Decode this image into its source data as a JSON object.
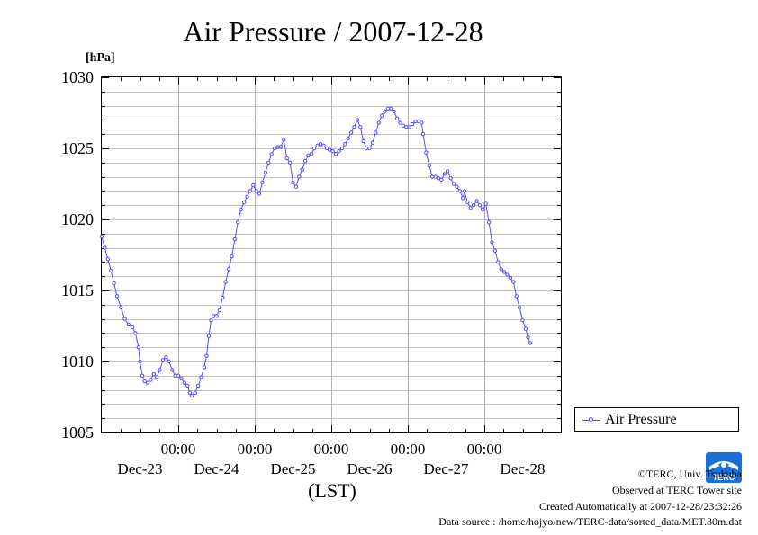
{
  "chart_data": {
    "type": "line",
    "title": "Air Pressure / 2007-12-28",
    "ylabel": "[hPa]",
    "xlabel": "(LST)",
    "ylim": [
      1005,
      1030
    ],
    "yticks": [
      1005,
      1010,
      1015,
      1020,
      1025,
      1030
    ],
    "xlim_days": [
      0,
      6
    ],
    "xtick_time_label": "00:00",
    "xtick_date_labels": [
      "Dec-23",
      "Dec-24",
      "Dec-25",
      "Dec-26",
      "Dec-27",
      "Dec-28"
    ],
    "grid": true,
    "legend_placement": "right",
    "series": [
      {
        "name": "Air Pressure",
        "color": "#5050ff",
        "points": [
          [
            0.0,
            1018.8
          ],
          [
            0.04,
            1018.0
          ],
          [
            0.08,
            1017.2
          ],
          [
            0.12,
            1016.4
          ],
          [
            0.16,
            1015.5
          ],
          [
            0.2,
            1014.6
          ],
          [
            0.25,
            1013.8
          ],
          [
            0.3,
            1013.0
          ],
          [
            0.35,
            1012.6
          ],
          [
            0.4,
            1012.4
          ],
          [
            0.44,
            1012.0
          ],
          [
            0.48,
            1011.0
          ],
          [
            0.5,
            1010.0
          ],
          [
            0.53,
            1009.0
          ],
          [
            0.56,
            1008.6
          ],
          [
            0.6,
            1008.5
          ],
          [
            0.64,
            1008.7
          ],
          [
            0.68,
            1009.1
          ],
          [
            0.72,
            1008.9
          ],
          [
            0.76,
            1009.4
          ],
          [
            0.8,
            1010.1
          ],
          [
            0.84,
            1010.3
          ],
          [
            0.88,
            1010.0
          ],
          [
            0.92,
            1009.4
          ],
          [
            0.96,
            1009.0
          ],
          [
            1.0,
            1009.0
          ],
          [
            1.04,
            1008.8
          ],
          [
            1.08,
            1008.5
          ],
          [
            1.12,
            1008.3
          ],
          [
            1.15,
            1007.8
          ],
          [
            1.18,
            1007.6
          ],
          [
            1.22,
            1007.8
          ],
          [
            1.26,
            1008.3
          ],
          [
            1.3,
            1008.9
          ],
          [
            1.34,
            1009.6
          ],
          [
            1.37,
            1010.4
          ],
          [
            1.4,
            1011.8
          ],
          [
            1.43,
            1012.9
          ],
          [
            1.46,
            1013.2
          ],
          [
            1.5,
            1013.2
          ],
          [
            1.54,
            1013.6
          ],
          [
            1.58,
            1014.5
          ],
          [
            1.62,
            1015.6
          ],
          [
            1.66,
            1016.5
          ],
          [
            1.7,
            1017.4
          ],
          [
            1.74,
            1018.6
          ],
          [
            1.78,
            1019.8
          ],
          [
            1.82,
            1020.7
          ],
          [
            1.86,
            1021.2
          ],
          [
            1.9,
            1021.6
          ],
          [
            1.94,
            1022.0
          ],
          [
            1.98,
            1022.4
          ],
          [
            2.02,
            1022.0
          ],
          [
            2.06,
            1021.8
          ],
          [
            2.1,
            1022.6
          ],
          [
            2.14,
            1023.3
          ],
          [
            2.18,
            1024.0
          ],
          [
            2.22,
            1024.6
          ],
          [
            2.26,
            1025.0
          ],
          [
            2.3,
            1025.1
          ],
          [
            2.34,
            1025.1
          ],
          [
            2.38,
            1025.6
          ],
          [
            2.42,
            1024.3
          ],
          [
            2.46,
            1024.0
          ],
          [
            2.5,
            1022.6
          ],
          [
            2.54,
            1022.3
          ],
          [
            2.58,
            1023.0
          ],
          [
            2.62,
            1023.5
          ],
          [
            2.66,
            1024.1
          ],
          [
            2.7,
            1024.5
          ],
          [
            2.74,
            1024.6
          ],
          [
            2.78,
            1025.0
          ],
          [
            2.82,
            1025.2
          ],
          [
            2.86,
            1025.3
          ],
          [
            2.9,
            1025.2
          ],
          [
            2.94,
            1025.0
          ],
          [
            2.98,
            1024.9
          ],
          [
            3.02,
            1024.8
          ],
          [
            3.06,
            1024.6
          ],
          [
            3.1,
            1024.8
          ],
          [
            3.14,
            1025.0
          ],
          [
            3.18,
            1025.3
          ],
          [
            3.22,
            1025.7
          ],
          [
            3.26,
            1026.1
          ],
          [
            3.3,
            1026.5
          ],
          [
            3.34,
            1027.0
          ],
          [
            3.38,
            1026.5
          ],
          [
            3.42,
            1025.5
          ],
          [
            3.46,
            1025.0
          ],
          [
            3.5,
            1025.0
          ],
          [
            3.54,
            1025.4
          ],
          [
            3.58,
            1026.1
          ],
          [
            3.62,
            1026.8
          ],
          [
            3.66,
            1027.3
          ],
          [
            3.7,
            1027.6
          ],
          [
            3.74,
            1027.8
          ],
          [
            3.78,
            1027.8
          ],
          [
            3.82,
            1027.6
          ],
          [
            3.86,
            1027.1
          ],
          [
            3.9,
            1026.8
          ],
          [
            3.94,
            1026.6
          ],
          [
            3.98,
            1026.5
          ],
          [
            4.02,
            1026.5
          ],
          [
            4.06,
            1026.7
          ],
          [
            4.1,
            1026.9
          ],
          [
            4.14,
            1026.9
          ],
          [
            4.18,
            1026.8
          ],
          [
            4.2,
            1026.0
          ],
          [
            4.24,
            1024.7
          ],
          [
            4.28,
            1023.8
          ],
          [
            4.32,
            1023.0
          ],
          [
            4.36,
            1023.0
          ],
          [
            4.4,
            1022.9
          ],
          [
            4.44,
            1022.8
          ],
          [
            4.48,
            1023.2
          ],
          [
            4.52,
            1023.4
          ],
          [
            4.56,
            1022.9
          ],
          [
            4.6,
            1022.5
          ],
          [
            4.64,
            1022.3
          ],
          [
            4.68,
            1022.0
          ],
          [
            4.72,
            1021.5
          ],
          [
            4.74,
            1022.0
          ],
          [
            4.78,
            1021.2
          ],
          [
            4.82,
            1020.8
          ],
          [
            4.86,
            1021.0
          ],
          [
            4.9,
            1021.3
          ],
          [
            4.94,
            1021.0
          ],
          [
            4.98,
            1020.7
          ],
          [
            5.02,
            1021.1
          ],
          [
            5.06,
            1019.8
          ],
          [
            5.1,
            1018.4
          ],
          [
            5.14,
            1017.8
          ],
          [
            5.18,
            1017.0
          ],
          [
            5.22,
            1016.5
          ],
          [
            5.26,
            1016.3
          ],
          [
            5.3,
            1016.1
          ],
          [
            5.34,
            1015.9
          ],
          [
            5.38,
            1015.6
          ],
          [
            5.42,
            1014.6
          ],
          [
            5.46,
            1013.8
          ],
          [
            5.5,
            1012.9
          ],
          [
            5.54,
            1012.3
          ],
          [
            5.57,
            1011.7
          ],
          [
            5.6,
            1011.3
          ]
        ]
      }
    ]
  },
  "legend": {
    "label": "Air Pressure"
  },
  "credits": {
    "copyright": "©TERC, Univ. Tsukuba",
    "observed": "Observed at TERC Tower site",
    "created": "Created Automatically at 2007-12-28/23:32:26",
    "source": "Data source : /home/hojyo/new/TERC-data/sorted_data/MET.30m.dat"
  },
  "logo": {
    "name": "terc-logo",
    "text": "TERC",
    "color": "#1c6fd6"
  }
}
